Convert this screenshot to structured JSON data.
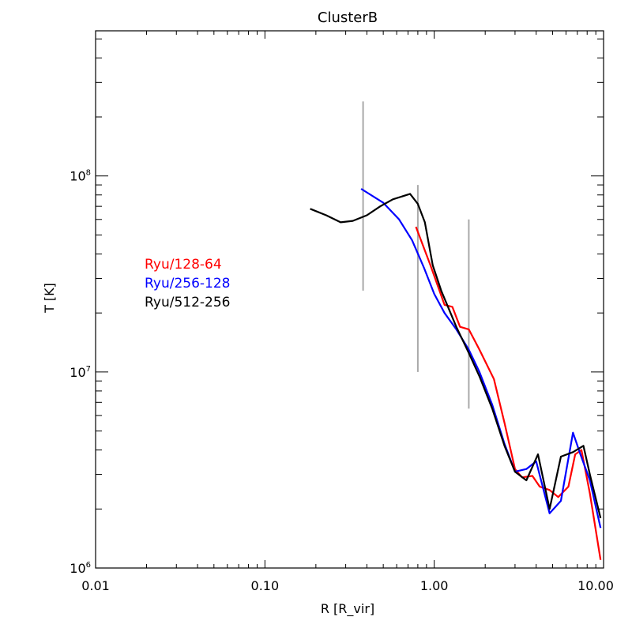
{
  "chart_data": {
    "type": "line",
    "title": "ClusterB",
    "xlabel": "R [R_vir]",
    "ylabel": "T [K]",
    "xscale": "log",
    "yscale": "log",
    "xlim": [
      0.01,
      10.0
    ],
    "ylim": [
      1000000,
      550000000
    ],
    "x_tick_labels": [
      "0.01",
      "0.10",
      "1.00",
      "10.00"
    ],
    "x_tick_values": [
      0.01,
      0.1,
      1.0,
      10.0
    ],
    "y_tick_labels": [
      {
        "base": "10",
        "exp": "6"
      },
      {
        "base": "10",
        "exp": "7"
      },
      {
        "base": "10",
        "exp": "8"
      }
    ],
    "y_tick_values": [
      1000000,
      10000000,
      100000000
    ],
    "legend_position": "left-middle",
    "series": [
      {
        "name": "Ryu/128-64",
        "color": "#ff0000",
        "x": [
          0.78,
          0.95,
          1.15,
          1.28,
          1.42,
          1.6,
          1.85,
          2.25,
          2.6,
          3.0,
          3.3,
          3.8,
          4.2,
          4.8,
          5.4,
          6.2,
          6.8,
          7.4,
          8.3,
          9.6
        ],
        "y": [
          55000000,
          35000000,
          22000000,
          21500000,
          17000000,
          16500000,
          13000000,
          9200000,
          5500000,
          3200000,
          2900000,
          2950000,
          2600000,
          2500000,
          2300000,
          2600000,
          3800000,
          4000000,
          2400000,
          1100000
        ]
      },
      {
        "name": "Ryu/256-128",
        "color": "#0000ff",
        "x": [
          0.37,
          0.5,
          0.62,
          0.74,
          0.87,
          1.0,
          1.15,
          1.35,
          1.6,
          1.85,
          2.2,
          2.6,
          3.0,
          3.5,
          4.0,
          4.8,
          5.6,
          6.6,
          7.3,
          8.3,
          9.6
        ],
        "y": [
          86000000,
          73000000,
          60000000,
          47000000,
          34000000,
          25000000,
          20000000,
          16500000,
          13000000,
          10000000,
          6800000,
          4300000,
          3100000,
          3200000,
          3500000,
          1900000,
          2200000,
          4900000,
          3800000,
          2800000,
          1600000
        ]
      },
      {
        "name": "Ryu/512-256",
        "color": "#000000",
        "x": [
          0.185,
          0.23,
          0.28,
          0.33,
          0.4,
          0.48,
          0.57,
          0.72,
          0.8,
          0.88,
          0.98,
          1.1,
          1.35,
          1.6,
          1.85,
          2.2,
          2.6,
          3.0,
          3.5,
          4.1,
          4.8,
          5.6,
          6.6,
          7.6,
          8.3,
          9.6
        ],
        "y": [
          68000000,
          63000000,
          58000000,
          59000000,
          63000000,
          70000000,
          76000000,
          81000000,
          72000000,
          58000000,
          35000000,
          26000000,
          17000000,
          12500000,
          9500000,
          6500000,
          4200000,
          3100000,
          2800000,
          3800000,
          2000000,
          3700000,
          3900000,
          4200000,
          3000000,
          1800000
        ]
      }
    ],
    "error_bars": {
      "color": "#a9a9a9",
      "x": [
        0.38,
        0.8,
        1.6
      ],
      "low": [
        26000000,
        10000000,
        6500000
      ],
      "high": [
        240000000,
        90000000,
        60000000
      ]
    }
  }
}
